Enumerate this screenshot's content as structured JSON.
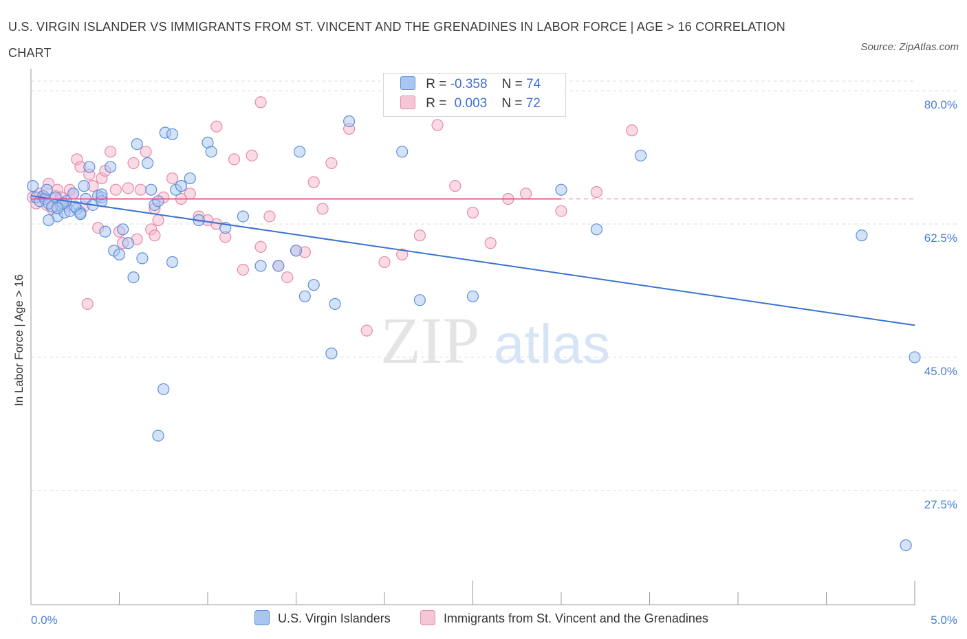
{
  "title": "U.S. VIRGIN ISLANDER VS IMMIGRANTS FROM ST. VINCENT AND THE GRENADINES IN LABOR FORCE | AGE > 16 CORRELATION CHART",
  "source": "Source: ZipAtlas.com",
  "watermark": {
    "zip": "ZIP",
    "atlas": "atlas"
  },
  "legend": {
    "row1": {
      "r_label": "R =",
      "r_value": "-0.358",
      "n_label": "N =",
      "n_value": "74"
    },
    "row2": {
      "r_label": "R =",
      "r_value": "0.003",
      "n_label": "N =",
      "n_value": "72"
    }
  },
  "colors": {
    "blue_fill": "#a9c6f2",
    "blue_stroke": "#5b8fd8",
    "blue_line": "#3a72d0",
    "pink_fill": "#f5b8cc",
    "pink_stroke": "#e68aa8",
    "pink_line": "#e0608a",
    "grid": "#dddddd",
    "axis": "#999999",
    "tick_text": "#4a7fd0"
  },
  "chart_data": {
    "type": "scatter",
    "xlabel": "",
    "ylabel": "In Labor Force | Age > 16",
    "xlim": [
      0,
      5
    ],
    "ylim": [
      12.5,
      82
    ],
    "x_tick_labels": {
      "left": "0.0%",
      "right": "5.0%"
    },
    "y_ticks": [
      {
        "value": 80.0,
        "label": "80.0%"
      },
      {
        "value": 62.5,
        "label": "62.5%"
      },
      {
        "value": 45.0,
        "label": "45.0%"
      },
      {
        "value": 27.5,
        "label": "27.5%"
      }
    ],
    "series": [
      {
        "name": "U.S. Virgin Islanders",
        "color": "#a9c6f2",
        "trend": {
          "x": [
            0,
            5
          ],
          "y": [
            66.2,
            49.2
          ]
        },
        "points": [
          [
            0.01,
            67.5
          ],
          [
            0.03,
            66.0
          ],
          [
            0.05,
            65.5
          ],
          [
            0.07,
            66.2
          ],
          [
            0.08,
            65.8
          ],
          [
            0.09,
            67.0
          ],
          [
            0.1,
            65.2
          ],
          [
            0.12,
            64.8
          ],
          [
            0.14,
            66.0
          ],
          [
            0.15,
            63.5
          ],
          [
            0.17,
            65.0
          ],
          [
            0.19,
            64.0
          ],
          [
            0.2,
            65.5
          ],
          [
            0.22,
            64.2
          ],
          [
            0.24,
            66.5
          ],
          [
            0.26,
            64.5
          ],
          [
            0.28,
            64.0
          ],
          [
            0.3,
            67.5
          ],
          [
            0.31,
            65.8
          ],
          [
            0.33,
            70.0
          ],
          [
            0.35,
            65.0
          ],
          [
            0.38,
            66.2
          ],
          [
            0.4,
            66.0
          ],
          [
            0.42,
            61.5
          ],
          [
            0.45,
            70.0
          ],
          [
            0.47,
            59.0
          ],
          [
            0.5,
            58.5
          ],
          [
            0.52,
            61.8
          ],
          [
            0.55,
            60.0
          ],
          [
            0.58,
            55.5
          ],
          [
            0.6,
            73.0
          ],
          [
            0.63,
            58.0
          ],
          [
            0.66,
            70.5
          ],
          [
            0.68,
            67.0
          ],
          [
            0.7,
            65.0
          ],
          [
            0.72,
            65.5
          ],
          [
            0.76,
            74.5
          ],
          [
            0.8,
            57.5
          ],
          [
            0.82,
            67.0
          ],
          [
            0.85,
            67.5
          ],
          [
            0.9,
            68.5
          ],
          [
            0.95,
            63.0
          ],
          [
            1.0,
            73.2
          ],
          [
            1.02,
            72.0
          ],
          [
            1.1,
            62.0
          ],
          [
            1.2,
            63.5
          ],
          [
            1.3,
            57.0
          ],
          [
            1.4,
            57.0
          ],
          [
            1.5,
            59.0
          ],
          [
            1.55,
            53.0
          ],
          [
            1.6,
            54.5
          ],
          [
            1.7,
            45.5
          ],
          [
            1.8,
            76.0
          ],
          [
            0.4,
            65.5
          ],
          [
            0.25,
            64.8
          ],
          [
            0.18,
            65.2
          ],
          [
            0.28,
            63.8
          ],
          [
            0.1,
            63.0
          ],
          [
            0.4,
            66.4
          ],
          [
            1.52,
            72.0
          ],
          [
            2.1,
            72.0
          ],
          [
            2.2,
            52.5
          ],
          [
            2.5,
            53.0
          ],
          [
            3.0,
            67.0
          ],
          [
            3.2,
            61.8
          ],
          [
            3.45,
            71.5
          ],
          [
            4.7,
            61.0
          ],
          [
            4.95,
            20.3
          ],
          [
            5.0,
            45.0
          ],
          [
            0.15,
            64.6
          ],
          [
            0.8,
            74.3
          ],
          [
            0.75,
            40.8
          ],
          [
            0.72,
            34.7
          ],
          [
            1.72,
            52.0
          ]
        ]
      },
      {
        "name": "Immigrants from St. Vincent and the Grenadines",
        "color": "#f5b8cc",
        "trend": {
          "x": [
            0,
            3
          ],
          "y": [
            65.8,
            65.8
          ]
        },
        "points": [
          [
            0.01,
            66.0
          ],
          [
            0.03,
            65.2
          ],
          [
            0.05,
            66.5
          ],
          [
            0.07,
            66.0
          ],
          [
            0.09,
            65.0
          ],
          [
            0.1,
            67.8
          ],
          [
            0.12,
            64.5
          ],
          [
            0.14,
            66.2
          ],
          [
            0.15,
            67.0
          ],
          [
            0.17,
            66.0
          ],
          [
            0.19,
            65.2
          ],
          [
            0.2,
            64.8
          ],
          [
            0.22,
            67.0
          ],
          [
            0.24,
            66.5
          ],
          [
            0.26,
            71.0
          ],
          [
            0.28,
            70.0
          ],
          [
            0.3,
            64.8
          ],
          [
            0.33,
            69.0
          ],
          [
            0.35,
            67.5
          ],
          [
            0.38,
            62.0
          ],
          [
            0.4,
            68.5
          ],
          [
            0.42,
            69.5
          ],
          [
            0.45,
            72.0
          ],
          [
            0.48,
            67.0
          ],
          [
            0.5,
            61.5
          ],
          [
            0.52,
            60.0
          ],
          [
            0.55,
            67.2
          ],
          [
            0.58,
            70.5
          ],
          [
            0.6,
            60.5
          ],
          [
            0.62,
            67.0
          ],
          [
            0.65,
            72.0
          ],
          [
            0.68,
            61.8
          ],
          [
            0.7,
            64.5
          ],
          [
            0.72,
            63.0
          ],
          [
            0.75,
            66.0
          ],
          [
            0.8,
            68.5
          ],
          [
            0.85,
            65.8
          ],
          [
            0.9,
            66.5
          ],
          [
            0.95,
            63.5
          ],
          [
            1.0,
            63.0
          ],
          [
            1.05,
            62.5
          ],
          [
            1.1,
            60.8
          ],
          [
            1.15,
            71.0
          ],
          [
            1.2,
            56.5
          ],
          [
            1.25,
            71.5
          ],
          [
            1.3,
            59.5
          ],
          [
            1.35,
            63.5
          ],
          [
            1.4,
            57.0
          ],
          [
            1.45,
            55.5
          ],
          [
            1.5,
            59.0
          ],
          [
            1.55,
            58.8
          ],
          [
            1.6,
            68.0
          ],
          [
            1.65,
            64.5
          ],
          [
            1.7,
            70.5
          ],
          [
            1.8,
            75.0
          ],
          [
            1.9,
            48.5
          ],
          [
            2.0,
            57.5
          ],
          [
            2.1,
            58.5
          ],
          [
            2.2,
            61.0
          ],
          [
            2.3,
            75.5
          ],
          [
            2.4,
            67.5
          ],
          [
            2.5,
            64.0
          ],
          [
            2.6,
            60.0
          ],
          [
            2.7,
            65.8
          ],
          [
            2.8,
            66.5
          ],
          [
            3.0,
            64.2
          ],
          [
            3.2,
            66.7
          ],
          [
            3.4,
            74.8
          ],
          [
            0.32,
            52.0
          ],
          [
            1.3,
            78.5
          ],
          [
            1.05,
            75.3
          ],
          [
            0.7,
            61.0
          ]
        ]
      }
    ]
  },
  "bottom_legend": {
    "item1": "U.S. Virgin Islanders",
    "item2": "Immigrants from St. Vincent and the Grenadines"
  }
}
